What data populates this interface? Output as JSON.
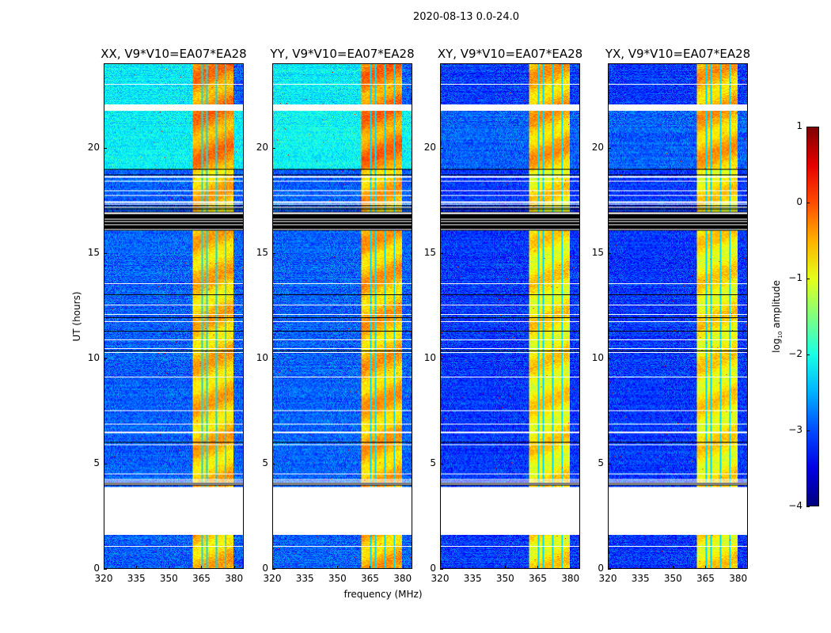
{
  "suptitle": "2020-08-13 0.0-24.0",
  "chart_data": {
    "type": "heatmap",
    "xlabel": "frequency (MHz)",
    "ylabel": "UT (hours)",
    "xlim": [
      320,
      384.5
    ],
    "ylim": [
      0,
      24
    ],
    "xticks": [
      "320",
      "335",
      "350",
      "365",
      "380"
    ],
    "xtick_values": [
      320,
      335,
      350,
      365,
      380
    ],
    "yticks": [
      "0",
      "5",
      "10",
      "15",
      "20"
    ],
    "ytick_values": [
      0,
      5,
      10,
      15,
      20
    ],
    "colorbar": {
      "label_prefix": "log",
      "label_sub": "10",
      "label_suffix": " amplitude",
      "range": [
        -4,
        1
      ],
      "ticks": [
        "1",
        "0",
        "−1",
        "−2",
        "−3",
        "−4"
      ],
      "tick_values": [
        1,
        0,
        -1,
        -2,
        -3,
        -4
      ],
      "colormap": "jet"
    },
    "bright_band_mhz": [
      361,
      380
    ],
    "subband_edges_mhz": [
      365.3,
      367.5,
      372,
      376.3
    ],
    "empty_intervals_hours": [
      [
        1.6,
        3.9
      ],
      [
        21.8,
        22.1
      ]
    ],
    "flagged_black_intervals_hours": [
      [
        16.1,
        17.0
      ],
      [
        3.95,
        4.1
      ]
    ],
    "panels": [
      {
        "title": "XX, V9*V10=EA07*EA28",
        "base_level": -2.9,
        "elevated_level_19_22h": -2.15,
        "band_level": -0.6
      },
      {
        "title": "YY, V9*V10=EA07*EA28",
        "base_level": -2.9,
        "elevated_level_19_22h": -2.1,
        "band_level": -0.55
      },
      {
        "title": "XY, V9*V10=EA07*EA28",
        "base_level": -3.1,
        "elevated_level_19_22h": -2.9,
        "band_level": -0.8
      },
      {
        "title": "YX, V9*V10=EA07*EA28",
        "base_level": -3.1,
        "elevated_level_19_22h": -2.9,
        "band_level": -0.8
      }
    ]
  }
}
